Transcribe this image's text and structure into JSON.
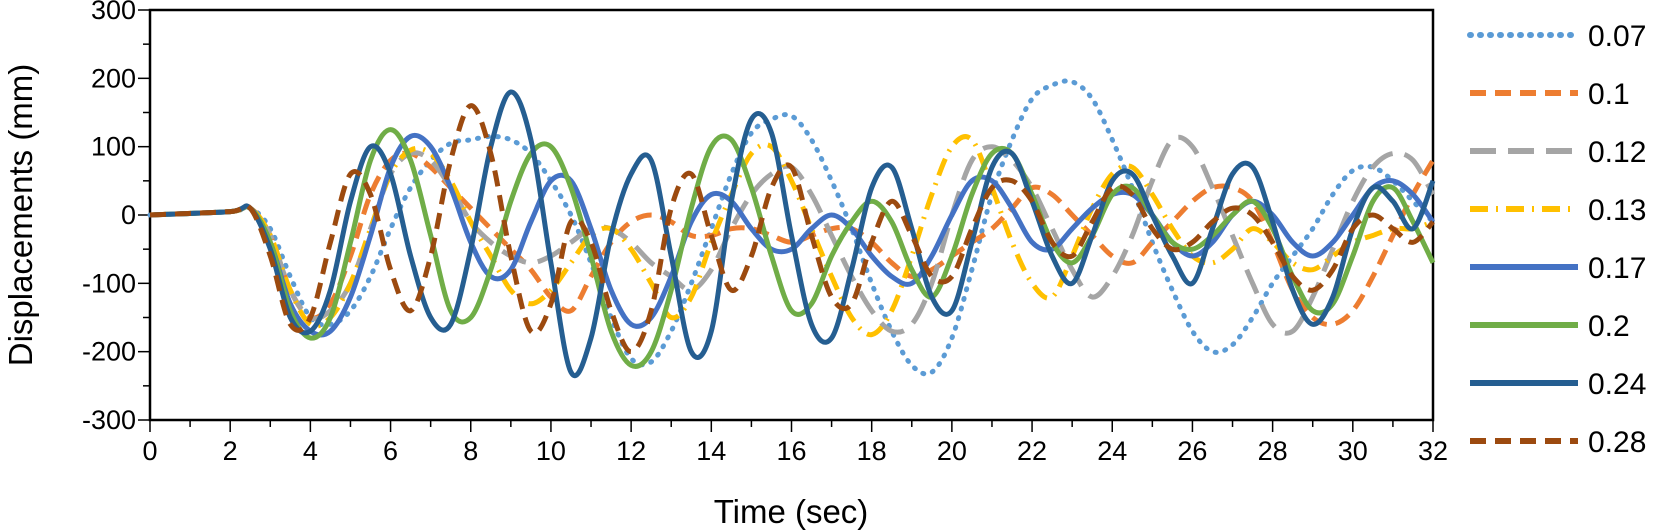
{
  "chart_data": {
    "type": "line",
    "title": "",
    "xlabel": "Time (sec)",
    "ylabel": "Displacements (mm)",
    "xlim": [
      0,
      32
    ],
    "ylim": [
      -300,
      300
    ],
    "xticks": [
      0,
      2,
      4,
      6,
      8,
      10,
      12,
      14,
      16,
      18,
      20,
      22,
      24,
      26,
      28,
      30,
      32
    ],
    "yticks": [
      300,
      200,
      100,
      0,
      -100,
      -200,
      -300
    ],
    "grid": false,
    "legend_position": "right",
    "series": [
      {
        "name": "0.07",
        "color": "#5b9bd5",
        "style": "dotted",
        "x": [
          0,
          2,
          2.5,
          3,
          3.5,
          4,
          4.5,
          5,
          5.5,
          6,
          6.5,
          7,
          7.5,
          8,
          8.5,
          9,
          9.5,
          10,
          10.5,
          11,
          11.5,
          12,
          12.5,
          13,
          13.5,
          14,
          14.5,
          15,
          15.5,
          16,
          16.5,
          17,
          17.5,
          18,
          18.5,
          19,
          19.5,
          20,
          20.5,
          21,
          21.5,
          22,
          22.5,
          23,
          23.5,
          24,
          24.5,
          25,
          25.5,
          26,
          26.5,
          27,
          27.5,
          28,
          28.5,
          29,
          29.5,
          30,
          30.5,
          31,
          31.5,
          32
        ],
        "y": [
          0,
          5,
          10,
          -20,
          -90,
          -150,
          -160,
          -140,
          -90,
          -20,
          40,
          80,
          105,
          110,
          115,
          110,
          90,
          50,
          0,
          -70,
          -150,
          -210,
          -215,
          -170,
          -100,
          -20,
          60,
          120,
          140,
          145,
          110,
          50,
          -20,
          -100,
          -170,
          -220,
          -230,
          -180,
          -80,
          30,
          110,
          170,
          190,
          195,
          170,
          110,
          40,
          -40,
          -110,
          -170,
          -200,
          -190,
          -150,
          -100,
          -60,
          -20,
          30,
          65,
          70,
          50,
          20,
          -10
        ]
      },
      {
        "name": "0.1",
        "color": "#ed7d31",
        "style": "dashed",
        "x": [
          0,
          2,
          2.5,
          3,
          3.5,
          4,
          4.5,
          5,
          5.5,
          6,
          6.5,
          7,
          7.5,
          8,
          8.5,
          9,
          9.5,
          10,
          10.5,
          11,
          11.5,
          12,
          12.5,
          13,
          13.5,
          14,
          14.5,
          15,
          15.5,
          16,
          16.5,
          17,
          17.5,
          18,
          18.5,
          19,
          19.5,
          20,
          20.5,
          21,
          21.5,
          22,
          22.5,
          23,
          23.5,
          24,
          24.5,
          25,
          25.5,
          26,
          26.5,
          27,
          27.5,
          28,
          28.5,
          29,
          29.5,
          30,
          30.5,
          31,
          31.5,
          32
        ],
        "y": [
          0,
          5,
          10,
          -30,
          -110,
          -150,
          -130,
          -60,
          30,
          80,
          90,
          70,
          40,
          10,
          -20,
          -50,
          -80,
          -120,
          -140,
          -90,
          -40,
          -10,
          0,
          -10,
          -30,
          -30,
          -20,
          -20,
          -30,
          -40,
          -30,
          -20,
          -20,
          -40,
          -70,
          -90,
          -80,
          -60,
          -40,
          -20,
          10,
          40,
          30,
          0,
          -30,
          -60,
          -70,
          -40,
          -10,
          20,
          40,
          40,
          20,
          -40,
          -110,
          -150,
          -160,
          -140,
          -90,
          -30,
          30,
          80
        ]
      },
      {
        "name": "0.12",
        "color": "#a5a5a5",
        "style": "longdash",
        "x": [
          0,
          2,
          2.5,
          3,
          3.5,
          4,
          4.5,
          5,
          5.5,
          6,
          6.5,
          7,
          7.5,
          8,
          8.5,
          9,
          9.5,
          10,
          10.5,
          11,
          11.5,
          12,
          12.5,
          13,
          13.5,
          14,
          14.5,
          15,
          15.5,
          16,
          16.5,
          17,
          17.5,
          18,
          18.5,
          19,
          19.5,
          20,
          20.5,
          21,
          21.5,
          22,
          22.5,
          23,
          23.5,
          24,
          24.5,
          25,
          25.5,
          26,
          26.5,
          27,
          27.5,
          28,
          28.5,
          29,
          29.5,
          30,
          30.5,
          31,
          31.5,
          32
        ],
        "y": [
          0,
          5,
          10,
          -30,
          -110,
          -150,
          -140,
          -100,
          -20,
          60,
          90,
          80,
          40,
          -10,
          -40,
          -60,
          -70,
          -60,
          -40,
          -20,
          -20,
          -40,
          -70,
          -90,
          -110,
          -80,
          -20,
          30,
          60,
          70,
          30,
          -30,
          -90,
          -140,
          -170,
          -160,
          -100,
          0,
          80,
          100,
          80,
          40,
          -20,
          -80,
          -120,
          -90,
          -30,
          50,
          110,
          100,
          40,
          -30,
          -100,
          -160,
          -170,
          -120,
          -50,
          20,
          70,
          90,
          80,
          30
        ]
      },
      {
        "name": "0.13",
        "color": "#ffc000",
        "style": "dashdot",
        "x": [
          0,
          2,
          2.5,
          3,
          3.5,
          4,
          4.5,
          5,
          5.5,
          6,
          6.5,
          7,
          7.5,
          8,
          8.5,
          9,
          9.5,
          10,
          10.5,
          11,
          11.5,
          12,
          12.5,
          13,
          13.5,
          14,
          14.5,
          15,
          15.5,
          16,
          16.5,
          17,
          17.5,
          18,
          18.5,
          19,
          19.5,
          20,
          20.5,
          21,
          21.5,
          22,
          22.5,
          23,
          23.5,
          24,
          24.5,
          25,
          25.5,
          26,
          26.5,
          27,
          27.5,
          28,
          28.5,
          29,
          29.5,
          30,
          30.5,
          31,
          31.5,
          32
        ],
        "y": [
          0,
          5,
          10,
          -30,
          -110,
          -160,
          -150,
          -100,
          -20,
          60,
          95,
          90,
          50,
          -10,
          -60,
          -110,
          -130,
          -110,
          -70,
          -30,
          -20,
          -50,
          -100,
          -150,
          -120,
          -40,
          30,
          90,
          100,
          50,
          -20,
          -90,
          -150,
          -175,
          -140,
          -60,
          30,
          100,
          110,
          40,
          -40,
          -100,
          -120,
          -60,
          10,
          60,
          70,
          30,
          -20,
          -60,
          -70,
          -50,
          -20,
          -40,
          -70,
          -80,
          -60,
          -40,
          -30,
          -20,
          -20,
          -10
        ]
      },
      {
        "name": "0.17",
        "color": "#4472c4",
        "style": "solid",
        "x": [
          0,
          2,
          2.5,
          3,
          3.5,
          4,
          4.5,
          5,
          5.5,
          6,
          6.5,
          7,
          7.5,
          8,
          8.5,
          9,
          9.5,
          10,
          10.5,
          11,
          11.5,
          12,
          12.5,
          13,
          13.5,
          14,
          14.5,
          15,
          15.5,
          16,
          16.5,
          17,
          17.5,
          18,
          18.5,
          19,
          19.5,
          20,
          20.5,
          21,
          21.5,
          22,
          22.5,
          23,
          23.5,
          24,
          24.5,
          25,
          25.5,
          26,
          26.5,
          27,
          27.5,
          28,
          28.5,
          29,
          29.5,
          30,
          30.5,
          31,
          31.5,
          32
        ],
        "y": [
          0,
          5,
          10,
          -40,
          -130,
          -170,
          -170,
          -120,
          -30,
          70,
          115,
          100,
          40,
          -40,
          -90,
          -80,
          -10,
          50,
          50,
          -20,
          -110,
          -160,
          -150,
          -90,
          -10,
          30,
          20,
          -20,
          -50,
          -50,
          -20,
          0,
          -20,
          -60,
          -90,
          -100,
          -60,
          0,
          50,
          50,
          10,
          -40,
          -50,
          -20,
          10,
          30,
          30,
          0,
          -40,
          -60,
          -40,
          0,
          20,
          0,
          -40,
          -60,
          -40,
          0,
          40,
          50,
          30,
          -10
        ]
      },
      {
        "name": "0.2",
        "color": "#70ad47",
        "style": "solid",
        "x": [
          0,
          2,
          2.5,
          3,
          3.5,
          4,
          4.5,
          5,
          5.5,
          6,
          6.5,
          7,
          7.5,
          8,
          8.5,
          9,
          9.5,
          10,
          10.5,
          11,
          11.5,
          12,
          12.5,
          13,
          13.5,
          14,
          14.5,
          15,
          15.5,
          16,
          16.5,
          17,
          17.5,
          18,
          18.5,
          19,
          19.5,
          20,
          20.5,
          21,
          21.5,
          22,
          22.5,
          23,
          23.5,
          24,
          24.5,
          25,
          25.5,
          26,
          26.5,
          27,
          27.5,
          28,
          28.5,
          29,
          29.5,
          30,
          30.5,
          31,
          31.5,
          32
        ],
        "y": [
          0,
          5,
          10,
          -40,
          -140,
          -180,
          -150,
          -40,
          80,
          125,
          80,
          -30,
          -140,
          -150,
          -80,
          20,
          90,
          100,
          40,
          -60,
          -170,
          -220,
          -200,
          -110,
          10,
          100,
          110,
          40,
          -60,
          -140,
          -130,
          -60,
          -10,
          20,
          -10,
          -80,
          -120,
          -60,
          30,
          90,
          90,
          30,
          -40,
          -70,
          -30,
          30,
          40,
          0,
          -40,
          -50,
          -30,
          0,
          20,
          -20,
          -90,
          -140,
          -130,
          -60,
          20,
          40,
          -10,
          -70
        ]
      },
      {
        "name": "0.24",
        "color": "#255e91",
        "style": "solid",
        "x": [
          0,
          2,
          2.5,
          3,
          3.5,
          4,
          4.5,
          5,
          5.5,
          6,
          6.5,
          7,
          7.5,
          8,
          8.5,
          9,
          9.5,
          10,
          10.5,
          11,
          11.5,
          12,
          12.5,
          13,
          13.5,
          14,
          14.5,
          15,
          15.5,
          16,
          16.5,
          17,
          17.5,
          18,
          18.5,
          19,
          19.5,
          20,
          20.5,
          21,
          21.5,
          22,
          22.5,
          23,
          23.5,
          24,
          24.5,
          25,
          25.5,
          26,
          26.5,
          27,
          27.5,
          28,
          28.5,
          29,
          29.5,
          30,
          30.5,
          31,
          31.5,
          32
        ],
        "y": [
          0,
          5,
          10,
          -50,
          -150,
          -170,
          -110,
          20,
          100,
          60,
          -60,
          -150,
          -160,
          -50,
          100,
          180,
          110,
          -70,
          -230,
          -180,
          -30,
          60,
          80,
          -60,
          -200,
          -170,
          20,
          140,
          120,
          -30,
          -160,
          -180,
          -80,
          40,
          70,
          -20,
          -120,
          -140,
          -40,
          70,
          90,
          20,
          -60,
          -100,
          -30,
          50,
          60,
          0,
          -60,
          -100,
          -20,
          60,
          70,
          -10,
          -110,
          -160,
          -120,
          -20,
          40,
          20,
          -20,
          50
        ]
      },
      {
        "name": "0.28",
        "color": "#9c4a0f",
        "style": "dashed",
        "x": [
          0,
          2,
          2.5,
          3,
          3.5,
          4,
          4.5,
          5,
          5.5,
          6,
          6.5,
          7,
          7.5,
          8,
          8.5,
          9,
          9.5,
          10,
          10.5,
          11,
          11.5,
          12,
          12.5,
          13,
          13.5,
          14,
          14.5,
          15,
          15.5,
          16,
          16.5,
          17,
          17.5,
          18,
          18.5,
          19,
          19.5,
          20,
          20.5,
          21,
          21.5,
          22,
          22.5,
          23,
          23.5,
          24,
          24.5,
          25,
          25.5,
          26,
          26.5,
          27,
          27.5,
          28,
          28.5,
          29,
          29.5,
          30,
          30.5,
          31,
          31.5,
          32
        ],
        "y": [
          0,
          5,
          10,
          -60,
          -160,
          -150,
          -40,
          60,
          30,
          -80,
          -140,
          -60,
          80,
          160,
          90,
          -60,
          -170,
          -130,
          -10,
          -40,
          -140,
          -200,
          -140,
          10,
          60,
          -30,
          -110,
          -60,
          40,
          70,
          -30,
          -120,
          -130,
          -40,
          20,
          -30,
          -90,
          -90,
          -20,
          40,
          50,
          20,
          -40,
          -60,
          -10,
          40,
          30,
          -20,
          -50,
          -40,
          -10,
          10,
          0,
          -40,
          -90,
          -110,
          -80,
          -20,
          0,
          -20,
          -40,
          -10
        ]
      }
    ]
  }
}
